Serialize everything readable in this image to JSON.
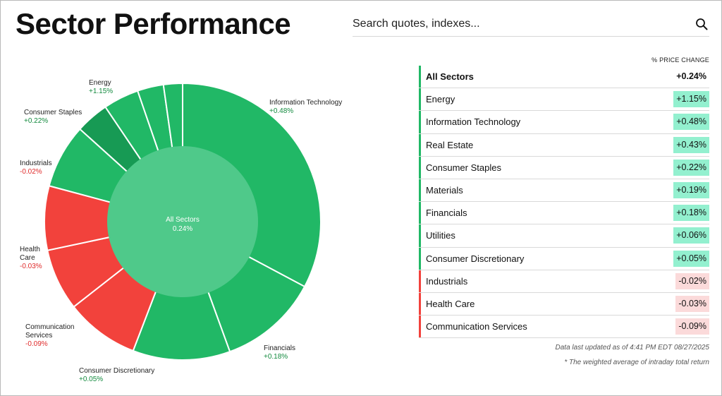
{
  "page": {
    "title": "Sector Performance"
  },
  "search": {
    "placeholder": "Search quotes, indexes..."
  },
  "colors": {
    "positive": "#21b866",
    "negative": "#f2423c",
    "positive_dark": "#179a54",
    "center": "#4fc98a",
    "positive_text": "#138a3e",
    "negative_text": "#e02b2b",
    "positive_bg": "#93f0cf",
    "negative_bg": "#fbdada"
  },
  "chart_data": {
    "type": "pie",
    "center_label": "All Sectors",
    "center_value": "0.24%",
    "slices": [
      {
        "name": "Information Technology",
        "value": "+0.48%",
        "sign": "positive"
      },
      {
        "name": "Financials",
        "value": "+0.18%",
        "sign": "positive"
      },
      {
        "name": "Consumer Discretionary",
        "value": "+0.05%",
        "sign": "positive"
      },
      {
        "name": "Communication Services",
        "value": "-0.09%",
        "sign": "negative"
      },
      {
        "name": "Health Care",
        "value": "-0.03%",
        "sign": "negative"
      },
      {
        "name": "Industrials",
        "value": "-0.02%",
        "sign": "negative"
      },
      {
        "name": "Consumer Staples",
        "value": "+0.22%",
        "sign": "positive"
      },
      {
        "name": "Energy",
        "value": "+1.15%",
        "sign": "positive"
      },
      {
        "name": "",
        "value": "",
        "sign": "positive"
      },
      {
        "name": "",
        "value": "",
        "sign": "positive"
      },
      {
        "name": "",
        "value": "",
        "sign": "positive"
      }
    ],
    "label_text": {
      "info_tech": "Information Technology",
      "info_tech_value": "+0.48%",
      "energy": "Energy",
      "energy_value": "+1.15%",
      "consumer_staples": "Consumer Staples",
      "consumer_staples_value": "+0.22%",
      "industrials": "Industrials",
      "industrials_value": "-0.02%",
      "health_care_line1": "Health",
      "health_care_line2": "Care",
      "health_care_value": "-0.03%",
      "comm_line1": "Communication",
      "comm_line2": "Services",
      "comm_value": "-0.09%",
      "cons_disc": "Consumer Discretionary",
      "cons_disc_value": "+0.05%",
      "financials": "Financials",
      "financials_value": "+0.18%"
    }
  },
  "table": {
    "column_header": "% PRICE CHANGE",
    "rows": [
      {
        "name": "All Sectors",
        "value": "+0.24%",
        "sign": "positive",
        "total": true
      },
      {
        "name": "Energy",
        "value": "+1.15%",
        "sign": "positive"
      },
      {
        "name": "Information Technology",
        "value": "+0.48%",
        "sign": "positive"
      },
      {
        "name": "Real Estate",
        "value": "+0.43%",
        "sign": "positive"
      },
      {
        "name": "Consumer Staples",
        "value": "+0.22%",
        "sign": "positive"
      },
      {
        "name": "Materials",
        "value": "+0.19%",
        "sign": "positive"
      },
      {
        "name": "Financials",
        "value": "+0.18%",
        "sign": "positive"
      },
      {
        "name": "Utilities",
        "value": "+0.06%",
        "sign": "positive"
      },
      {
        "name": "Consumer Discretionary",
        "value": "+0.05%",
        "sign": "positive"
      },
      {
        "name": "Industrials",
        "value": "-0.02%",
        "sign": "negative"
      },
      {
        "name": "Health Care",
        "value": "-0.03%",
        "sign": "negative"
      },
      {
        "name": "Communication Services",
        "value": "-0.09%",
        "sign": "negative"
      }
    ]
  },
  "footer": {
    "updated": "Data last updated as of 4:41 PM EDT 08/27/2025",
    "note": "* The weighted average of intraday total return"
  }
}
